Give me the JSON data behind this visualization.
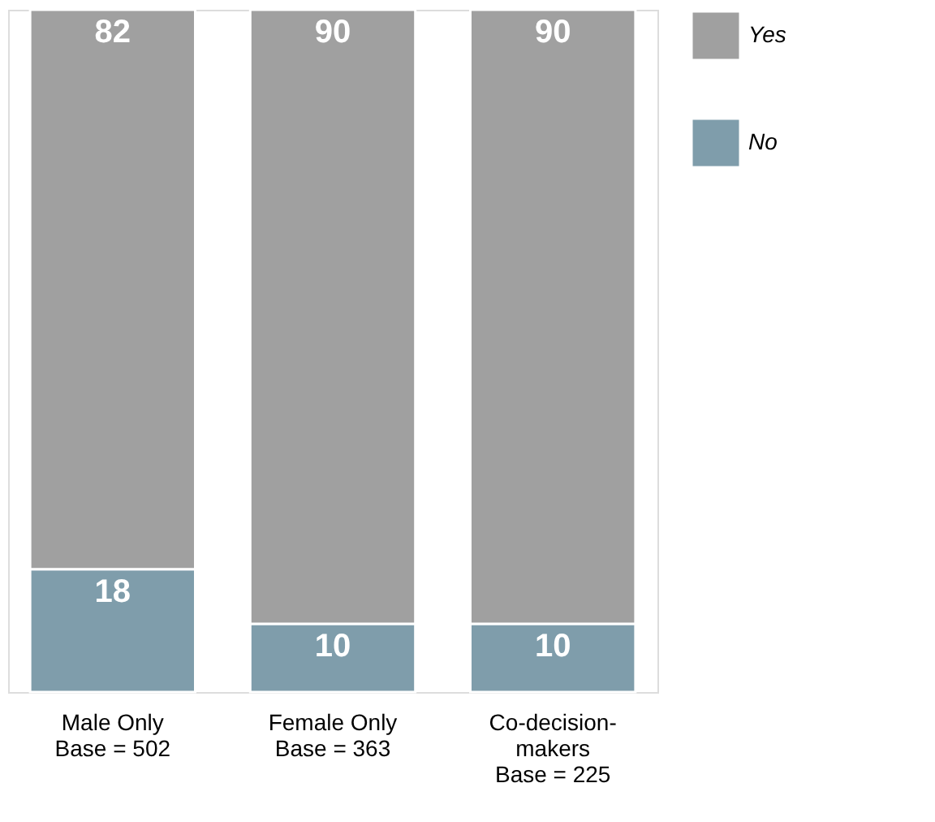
{
  "chart_data": {
    "type": "bar",
    "stacked": true,
    "categories": [
      "Male Only\nBase = 502",
      "Female Only\nBase = 363",
      "Co-decision-\nmakers\nBase = 225"
    ],
    "series": [
      {
        "name": "No",
        "color": "#7f9dab",
        "values": [
          18,
          10,
          10
        ]
      },
      {
        "name": "Yes",
        "color": "#a0a0a0",
        "values": [
          82,
          90,
          90
        ]
      }
    ],
    "ylim": [
      0,
      100
    ],
    "data_labels": true,
    "tick_labels": "x",
    "grid": false,
    "legend": "top right"
  }
}
